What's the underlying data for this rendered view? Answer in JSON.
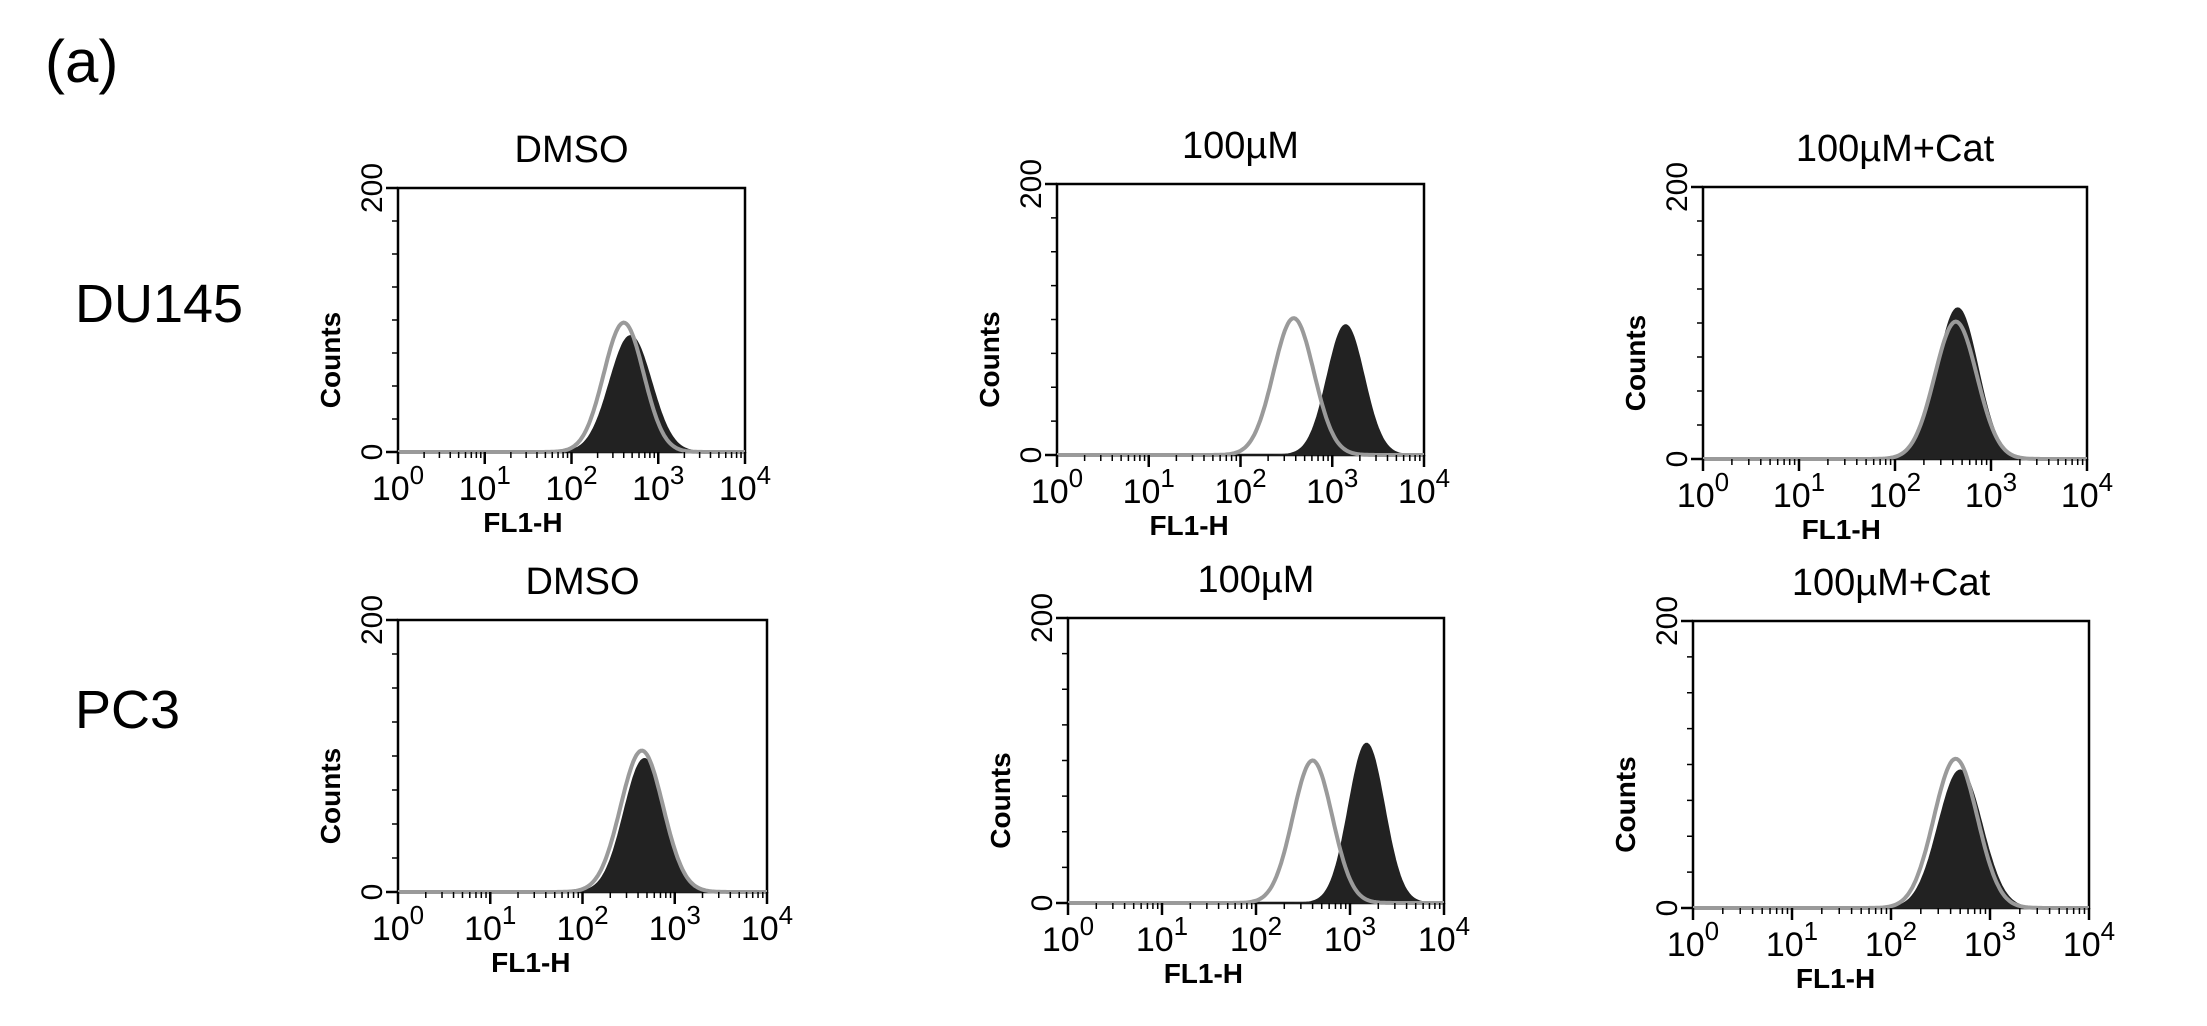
{
  "figure": {
    "panel_label": "(a)",
    "row_labels": [
      "DU145",
      "PC3"
    ]
  },
  "colors": {
    "filled_histogram": "#222222",
    "overlay_histogram": "#9a9a9a",
    "frame": "#000000"
  },
  "chart_data": [
    {
      "type": "area",
      "row": "DU145",
      "title": "DMSO",
      "xlabel": "FL1-H",
      "ylabel": "Counts",
      "x_scale": "log",
      "xlim": [
        1,
        10000
      ],
      "ylim": [
        0,
        200
      ],
      "yticks": [
        "0",
        "200"
      ],
      "xticks": [
        {
          "base": "10",
          "exp": "0"
        },
        {
          "base": "10",
          "exp": "1"
        },
        {
          "base": "10",
          "exp": "2"
        },
        {
          "base": "10",
          "exp": "3"
        },
        {
          "base": "10",
          "exp": "4"
        }
      ],
      "series": [
        {
          "style": "filled",
          "peak_x": 480,
          "peak_y": 88,
          "log_width": 0.24
        },
        {
          "style": "outline",
          "peak_x": 400,
          "peak_y": 98,
          "log_width": 0.23
        }
      ]
    },
    {
      "type": "area",
      "row": "DU145",
      "title": "100µM",
      "xlabel": "FL1-H",
      "ylabel": "Counts",
      "x_scale": "log",
      "xlim": [
        1,
        10000
      ],
      "ylim": [
        0,
        200
      ],
      "yticks": [
        "0",
        "200"
      ],
      "xticks": [
        {
          "base": "10",
          "exp": "0"
        },
        {
          "base": "10",
          "exp": "1"
        },
        {
          "base": "10",
          "exp": "2"
        },
        {
          "base": "10",
          "exp": "3"
        },
        {
          "base": "10",
          "exp": "4"
        }
      ],
      "series": [
        {
          "style": "filled",
          "peak_x": 1400,
          "peak_y": 96,
          "log_width": 0.2
        },
        {
          "style": "outline",
          "peak_x": 380,
          "peak_y": 101,
          "log_width": 0.22
        }
      ]
    },
    {
      "type": "area",
      "row": "DU145",
      "title": "100µM+Cat",
      "xlabel": "FL1-H",
      "ylabel": "Counts",
      "x_scale": "log",
      "xlim": [
        1,
        10000
      ],
      "ylim": [
        0,
        200
      ],
      "yticks": [
        "0",
        "200"
      ],
      "xticks": [
        {
          "base": "10",
          "exp": "0"
        },
        {
          "base": "10",
          "exp": "1"
        },
        {
          "base": "10",
          "exp": "2"
        },
        {
          "base": "10",
          "exp": "3"
        },
        {
          "base": "10",
          "exp": "4"
        }
      ],
      "series": [
        {
          "style": "filled",
          "peak_x": 450,
          "peak_y": 111,
          "log_width": 0.21
        },
        {
          "style": "outline",
          "peak_x": 430,
          "peak_y": 101,
          "log_width": 0.22
        }
      ]
    },
    {
      "type": "area",
      "row": "PC3",
      "title": "DMSO",
      "xlabel": "FL1-H",
      "ylabel": "Counts",
      "x_scale": "log",
      "xlim": [
        1,
        10000
      ],
      "ylim": [
        0,
        200
      ],
      "yticks": [
        "0",
        "200"
      ],
      "xticks": [
        {
          "base": "10",
          "exp": "0"
        },
        {
          "base": "10",
          "exp": "1"
        },
        {
          "base": "10",
          "exp": "2"
        },
        {
          "base": "10",
          "exp": "3"
        },
        {
          "base": "10",
          "exp": "4"
        }
      ],
      "series": [
        {
          "style": "filled",
          "peak_x": 470,
          "peak_y": 98,
          "log_width": 0.22
        },
        {
          "style": "outline",
          "peak_x": 440,
          "peak_y": 104,
          "log_width": 0.23
        }
      ]
    },
    {
      "type": "area",
      "row": "PC3",
      "title": "100µM",
      "xlabel": "FL1-H",
      "ylabel": "Counts",
      "x_scale": "log",
      "xlim": [
        1,
        10000
      ],
      "ylim": [
        0,
        200
      ],
      "yticks": [
        "0",
        "200"
      ],
      "xticks": [
        {
          "base": "10",
          "exp": "0"
        },
        {
          "base": "10",
          "exp": "1"
        },
        {
          "base": "10",
          "exp": "2"
        },
        {
          "base": "10",
          "exp": "3"
        },
        {
          "base": "10",
          "exp": "4"
        }
      ],
      "series": [
        {
          "style": "filled",
          "peak_x": 1500,
          "peak_y": 112,
          "log_width": 0.19
        },
        {
          "style": "outline",
          "peak_x": 400,
          "peak_y": 100,
          "log_width": 0.21
        }
      ]
    },
    {
      "type": "area",
      "row": "PC3",
      "title": "100µM+Cat",
      "xlabel": "FL1-H",
      "ylabel": "Counts",
      "x_scale": "log",
      "xlim": [
        1,
        10000
      ],
      "ylim": [
        0,
        200
      ],
      "yticks": [
        "0",
        "200"
      ],
      "xticks": [
        {
          "base": "10",
          "exp": "0"
        },
        {
          "base": "10",
          "exp": "1"
        },
        {
          "base": "10",
          "exp": "2"
        },
        {
          "base": "10",
          "exp": "3"
        },
        {
          "base": "10",
          "exp": "4"
        }
      ],
      "series": [
        {
          "style": "filled",
          "peak_x": 500,
          "peak_y": 96,
          "log_width": 0.22
        },
        {
          "style": "outline",
          "peak_x": 450,
          "peak_y": 104,
          "log_width": 0.22
        }
      ]
    }
  ]
}
